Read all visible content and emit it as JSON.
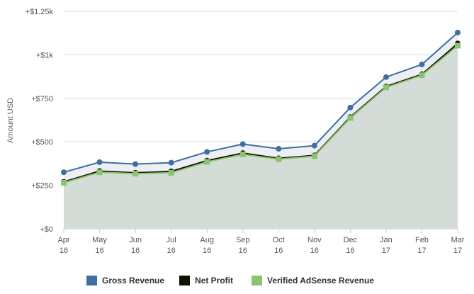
{
  "chart_data": {
    "type": "area",
    "categories": [
      [
        "Apr",
        "16"
      ],
      [
        "May",
        "16"
      ],
      [
        "Jun",
        "16"
      ],
      [
        "Jul",
        "16"
      ],
      [
        "Aug",
        "16"
      ],
      [
        "Sep",
        "16"
      ],
      [
        "Oct",
        "16"
      ],
      [
        "Nov",
        "16"
      ],
      [
        "Dec",
        "16"
      ],
      [
        "Jan",
        "17"
      ],
      [
        "Feb",
        "17"
      ],
      [
        "Mar",
        "17"
      ]
    ],
    "ylabel": "Amount USD",
    "ylim": [
      0,
      1250
    ],
    "yticks": [
      0,
      250,
      500,
      750,
      1000,
      1250
    ],
    "ytick_labels": [
      "+$0",
      "+$250",
      "+$500",
      "+$750",
      "+$1k",
      "+$1.25k"
    ],
    "grid": true,
    "legend_position": "bottom",
    "series": [
      {
        "name": "Gross Revenue",
        "color": "#3f6f9f",
        "marker": "circle",
        "values": [
          325,
          383,
          372,
          380,
          442,
          487,
          460,
          478,
          697,
          872,
          945,
          1128
        ]
      },
      {
        "name": "Net Profit",
        "color": "#111100",
        "marker": "circle",
        "values": [
          270,
          332,
          322,
          330,
          392,
          435,
          405,
          422,
          642,
          818,
          888,
          1065
        ]
      },
      {
        "name": "Verified AdSense Revenue",
        "color": "#8bc36f",
        "marker": "square",
        "values": [
          265,
          325,
          317,
          322,
          385,
          428,
          400,
          418,
          637,
          813,
          883,
          1053
        ]
      }
    ],
    "colors": {
      "area_fill": "#d4dcd8",
      "gap_fill": "#eceff3",
      "grid": "#d8d8d8",
      "axis": "#cccccc"
    }
  }
}
